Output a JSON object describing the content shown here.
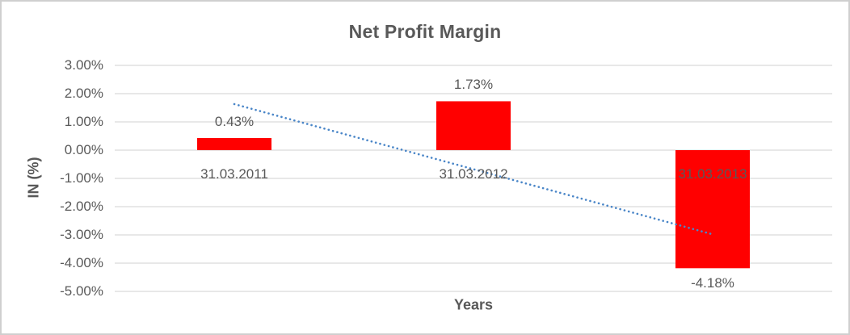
{
  "chart_data": {
    "type": "bar",
    "title": "Net Profit Margin",
    "xlabel": "Years",
    "ylabel": "IN (%)",
    "categories": [
      "31.03.2011",
      "31.03.2012",
      "31.03.2013"
    ],
    "values": [
      0.43,
      1.73,
      -4.18
    ],
    "data_labels": [
      "0.43%",
      "1.73%",
      "-4.18%"
    ],
    "ylim": [
      -5,
      3
    ],
    "ytick_values": [
      3,
      2,
      1,
      0,
      -1,
      -2,
      -3,
      -4,
      -5
    ],
    "ytick_labels": [
      "3.00%",
      "2.00%",
      "1.00%",
      "0.00%",
      "-1.00%",
      "-2.00%",
      "-3.00%",
      "-4.00%",
      "-5.00%"
    ],
    "grid": true,
    "legend": "none",
    "series_name": "Net Profit Margin",
    "trendline": {
      "type": "linear",
      "style": "dotted",
      "start_value": 1.63,
      "end_value": -2.98,
      "color": "#4A86C8"
    },
    "colors": {
      "bar": "#FF0000",
      "gridline": "#D9D9D9",
      "text": "#595959",
      "chart_border": "#CFCFCF",
      "background": "#FFFFFF"
    }
  }
}
